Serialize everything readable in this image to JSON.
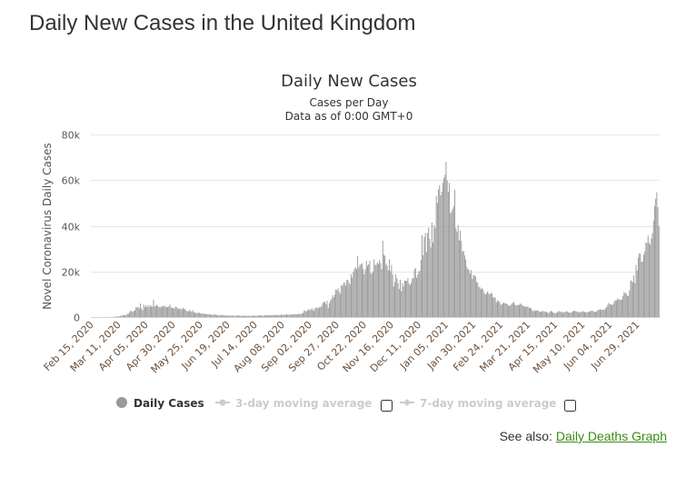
{
  "page_title": "Daily New Cases in the United Kingdom",
  "see_also": {
    "label": "See also:",
    "link": "Daily Deaths Graph",
    "link_color": "#3a8a17"
  },
  "legend": {
    "items": [
      {
        "label": "Daily Cases",
        "active": true
      },
      {
        "label": "3-day moving average",
        "active": false,
        "checked": false
      },
      {
        "label": "7-day moving average",
        "active": false,
        "checked": false
      }
    ]
  },
  "chart_data": {
    "type": "bar",
    "title": "Daily New Cases",
    "subtitle": "Cases per Day",
    "subtitle2": "Data as of 0:00 GMT+0",
    "ylabel": "Novel Coronavirus Daily Cases",
    "xlabel": "",
    "start_date": "2020-02-15",
    "ylim": [
      0,
      80000
    ],
    "yticks": [
      0,
      20000,
      40000,
      60000,
      80000
    ],
    "ytick_labels": [
      "0",
      "20k",
      "40k",
      "60k",
      "80k"
    ],
    "xtick_labels": [
      "Feb 15, 2020",
      "Mar 11, 2020",
      "Apr 05, 2020",
      "Apr 30, 2020",
      "May 25, 2020",
      "Jun 19, 2020",
      "Jul 14, 2020",
      "Aug 08, 2020",
      "Sep 02, 2020",
      "Sep 27, 2020",
      "Oct 22, 2020",
      "Nov 16, 2020",
      "Dec 11, 2020",
      "Jan 05, 2021",
      "Jan 30, 2021",
      "Feb 24, 2021",
      "Mar 21, 2021",
      "Apr 15, 2021",
      "May 10, 2021",
      "Jun 04, 2021",
      "Jun 29, 2021"
    ],
    "xtick_interval_days": 25,
    "grid": true,
    "legend_position": "bottom",
    "bar_color": "#999999",
    "series": [
      {
        "name": "Daily Cases",
        "values": [
          0,
          0,
          0,
          1,
          0,
          2,
          1,
          0,
          3,
          4,
          12,
          5,
          11,
          34,
          30,
          48,
          43,
          67,
          48,
          52,
          83,
          134,
          208,
          342,
          251,
          152,
          407,
          676,
          643,
          714,
          1035,
          665,
          967,
          1427,
          1452,
          2129,
          2885,
          2546,
          2433,
          2619,
          3009,
          4324,
          4244,
          4450,
          3735,
          5903,
          3802,
          2988,
          5491,
          4344,
          5195,
          4450,
          5288,
          4342,
          5252,
          4603,
          4617,
          7600,
          4700,
          4800,
          5300,
          4900,
          4300,
          4600,
          4200,
          4900,
          4800,
          5000,
          4400,
          4500,
          4300,
          4700,
          5500,
          4200,
          4100,
          3900,
          3700,
          4600,
          4400,
          3800,
          3400,
          3900,
          3500,
          3300,
          4100,
          3600,
          3500,
          2800,
          2600,
          2500,
          3100,
          2600,
          2400,
          3000,
          2100,
          2000,
          1900,
          1700,
          2100,
          1800,
          1600,
          1500,
          1700,
          1500,
          1300,
          1400,
          1200,
          1300,
          1100,
          1200,
          1000,
          900,
          1200,
          1100,
          1000,
          900,
          1000,
          800,
          700,
          900,
          800,
          900,
          700,
          800,
          600,
          600,
          800,
          700,
          600,
          700,
          600,
          500,
          600,
          700,
          600,
          800,
          600,
          500,
          500,
          600,
          600,
          700,
          600,
          500,
          600,
          400,
          500,
          700,
          600,
          700,
          600,
          500,
          700,
          600,
          800,
          700,
          800,
          700,
          600,
          700,
          800,
          900,
          800,
          900,
          700,
          800,
          900,
          800,
          1000,
          900,
          800,
          1000,
          900,
          800,
          1100,
          1000,
          900,
          1100,
          1000,
          1200,
          1100,
          1000,
          1100,
          1200,
          1000,
          1300,
          1400,
          1200,
          1100,
          1300,
          1400,
          1500,
          1200,
          1700,
          1800,
          2900,
          2700,
          2500,
          2900,
          3500,
          3000,
          3400,
          3900,
          3100,
          2700,
          3800,
          4300,
          4100,
          3700,
          4400,
          4400,
          4900,
          6200,
          6600,
          6800,
          5700,
          7100,
          4000,
          6000,
          7100,
          7900,
          9600,
          8700,
          9800,
          12100,
          11800,
          12600,
          11200,
          10200,
          13900,
          13700,
          15000,
          15200,
          13800,
          16200,
          16400,
          15100,
          14400,
          18800,
          17300,
          19700,
          21200,
          21900,
          20900,
          26700,
          21700,
          22900,
          23100,
          23600,
          21200,
          18800,
          20900,
          24800,
          22500,
          23100,
          24600,
          19400,
          18900,
          20000,
          25200,
          22900,
          22900,
          24000,
          23300,
          25100,
          23700,
          21000,
          33500,
          27300,
          26900,
          23300,
          22500,
          20500,
          25300,
          20200,
          22900,
          18700,
          13400,
          15400,
          18700,
          17000,
          14900,
          12300,
          16400,
          11300,
          14900,
          13400,
          16100,
          15900,
          15900,
          17000,
          14700,
          14000,
          15000,
          16800,
          17200,
          20900,
          21500,
          17200,
          18500,
          20000,
          20300,
          25100,
          35900,
          27100,
          35000,
          36800,
          28500,
          36800,
          39200,
          34300,
          30500,
          41400,
          32700,
          40300,
          39000,
          53100,
          50000,
          55900,
          57700,
          53300,
          54900,
          58800,
          60900,
          62300,
          68000,
          59900,
          54900,
          58800,
          45500,
          46200,
          47500,
          48700,
          55800,
          38900,
          37500,
          40300,
          33600,
          37900,
          33400,
          28700,
          29000,
          27000,
          25300,
          22000,
          21100,
          20600,
          19100,
          20600,
          16800,
          18400,
          18300,
          17700,
          15300,
          15100,
          13300,
          13000,
          12200,
          12700,
          12000,
          10600,
          9900,
          10400,
          11300,
          10400,
          9900,
          10600,
          10400,
          8500,
          8800,
          8500,
          6400,
          7400,
          6900,
          6700,
          5500,
          5500,
          5900,
          6500,
          6000,
          5900,
          5800,
          5100,
          4800,
          5200,
          5800,
          6300,
          6600,
          5500,
          5100,
          5200,
          5400,
          5300,
          6000,
          5600,
          5200,
          4900,
          4400,
          4800,
          4500,
          4700,
          3900,
          4100,
          3800,
          3000,
          2500,
          3100,
          2700,
          2900,
          3000,
          2600,
          2400,
          2200,
          2600,
          2700,
          2300,
          2500,
          2200,
          1900,
          1800,
          2400,
          2700,
          2500,
          2000,
          1900,
          1700,
          1800,
          2200,
          2500,
          2600,
          2200,
          2400,
          1900,
          2000,
          2300,
          2600,
          2400,
          2100,
          2000,
          1800,
          2200,
          2500,
          2800,
          2700,
          2600,
          2400,
          2000,
          2300,
          2000,
          2400,
          2600,
          2400,
          2300,
          2100,
          2000,
          2200,
          2300,
          2700,
          2600,
          2900,
          2500,
          2100,
          2400,
          2500,
          3100,
          3200,
          3500,
          3100,
          3200,
          3400,
          3200,
          3900,
          4300,
          5300,
          6200,
          5700,
          5500,
          5300,
          5600,
          6900,
          7400,
          7300,
          8100,
          7800,
          7700,
          7700,
          7600,
          9300,
          11000,
          10500,
          10300,
          9300,
          9300,
          11600,
          16100,
          15800,
          15300,
          18200,
          14900,
          22900,
          20400,
          26100,
          27900,
          27800,
          24200,
          24300,
          27300,
          28800,
          32600,
          32500,
          35700,
          32400,
          31800,
          34500,
          36700,
          42300,
          48600,
          51900,
          54700,
          48200,
          39900
        ]
      }
    ]
  }
}
